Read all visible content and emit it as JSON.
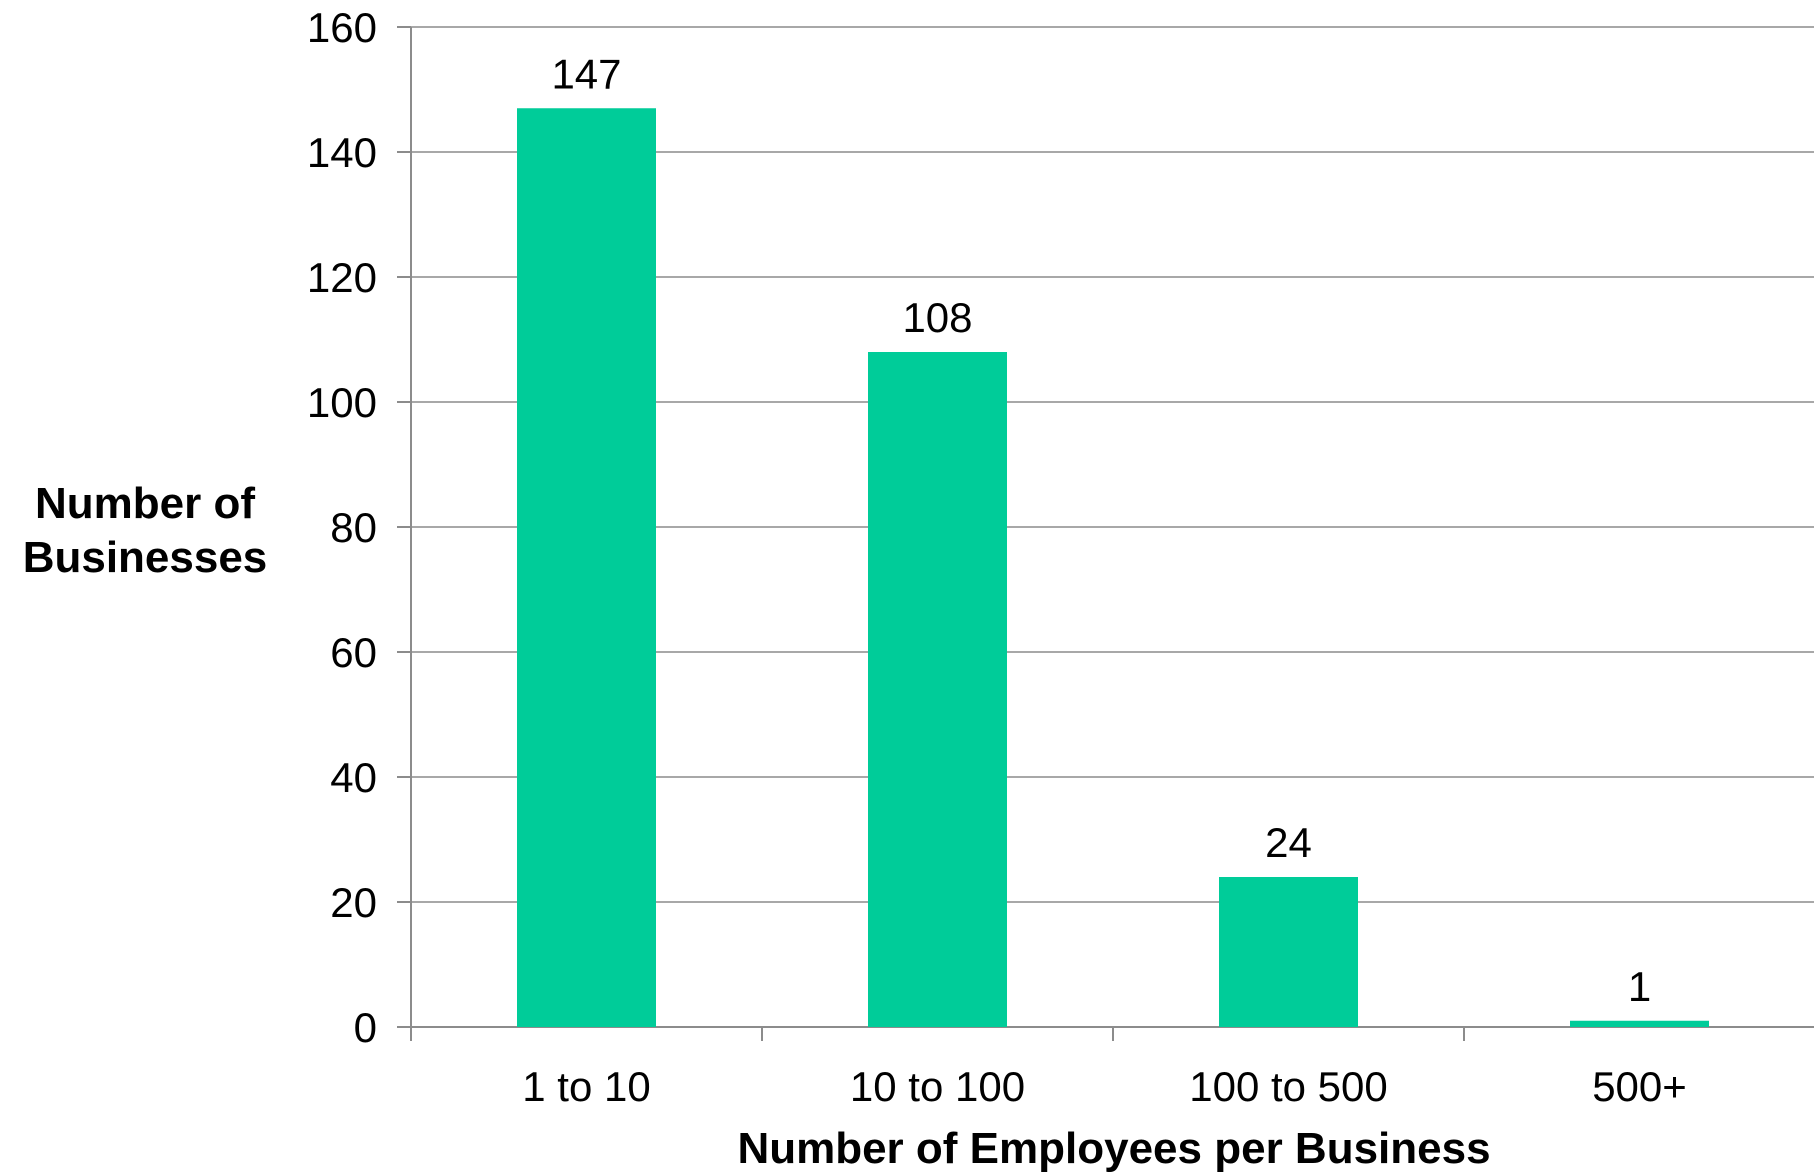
{
  "chart_data": {
    "type": "bar",
    "categories": [
      "1 to 10",
      "10 to 100",
      "100 to 500",
      "500+"
    ],
    "values": [
      147,
      108,
      24,
      1
    ],
    "data_labels": [
      "147",
      "108",
      "24",
      "1"
    ],
    "xlabel": "Number of Employees per Business",
    "ylabel_lines": [
      "Number of",
      "Businesses"
    ],
    "ylim": [
      0,
      160
    ],
    "yticks": [
      0,
      20,
      40,
      60,
      80,
      100,
      120,
      140,
      160
    ],
    "ytick_labels": [
      "0",
      "20",
      "40",
      "60",
      "80",
      "100",
      "120",
      "140",
      "160"
    ],
    "grid": true,
    "legend": "none",
    "bar_color": "#00cc99",
    "grid_color": "#8c8c8c"
  }
}
